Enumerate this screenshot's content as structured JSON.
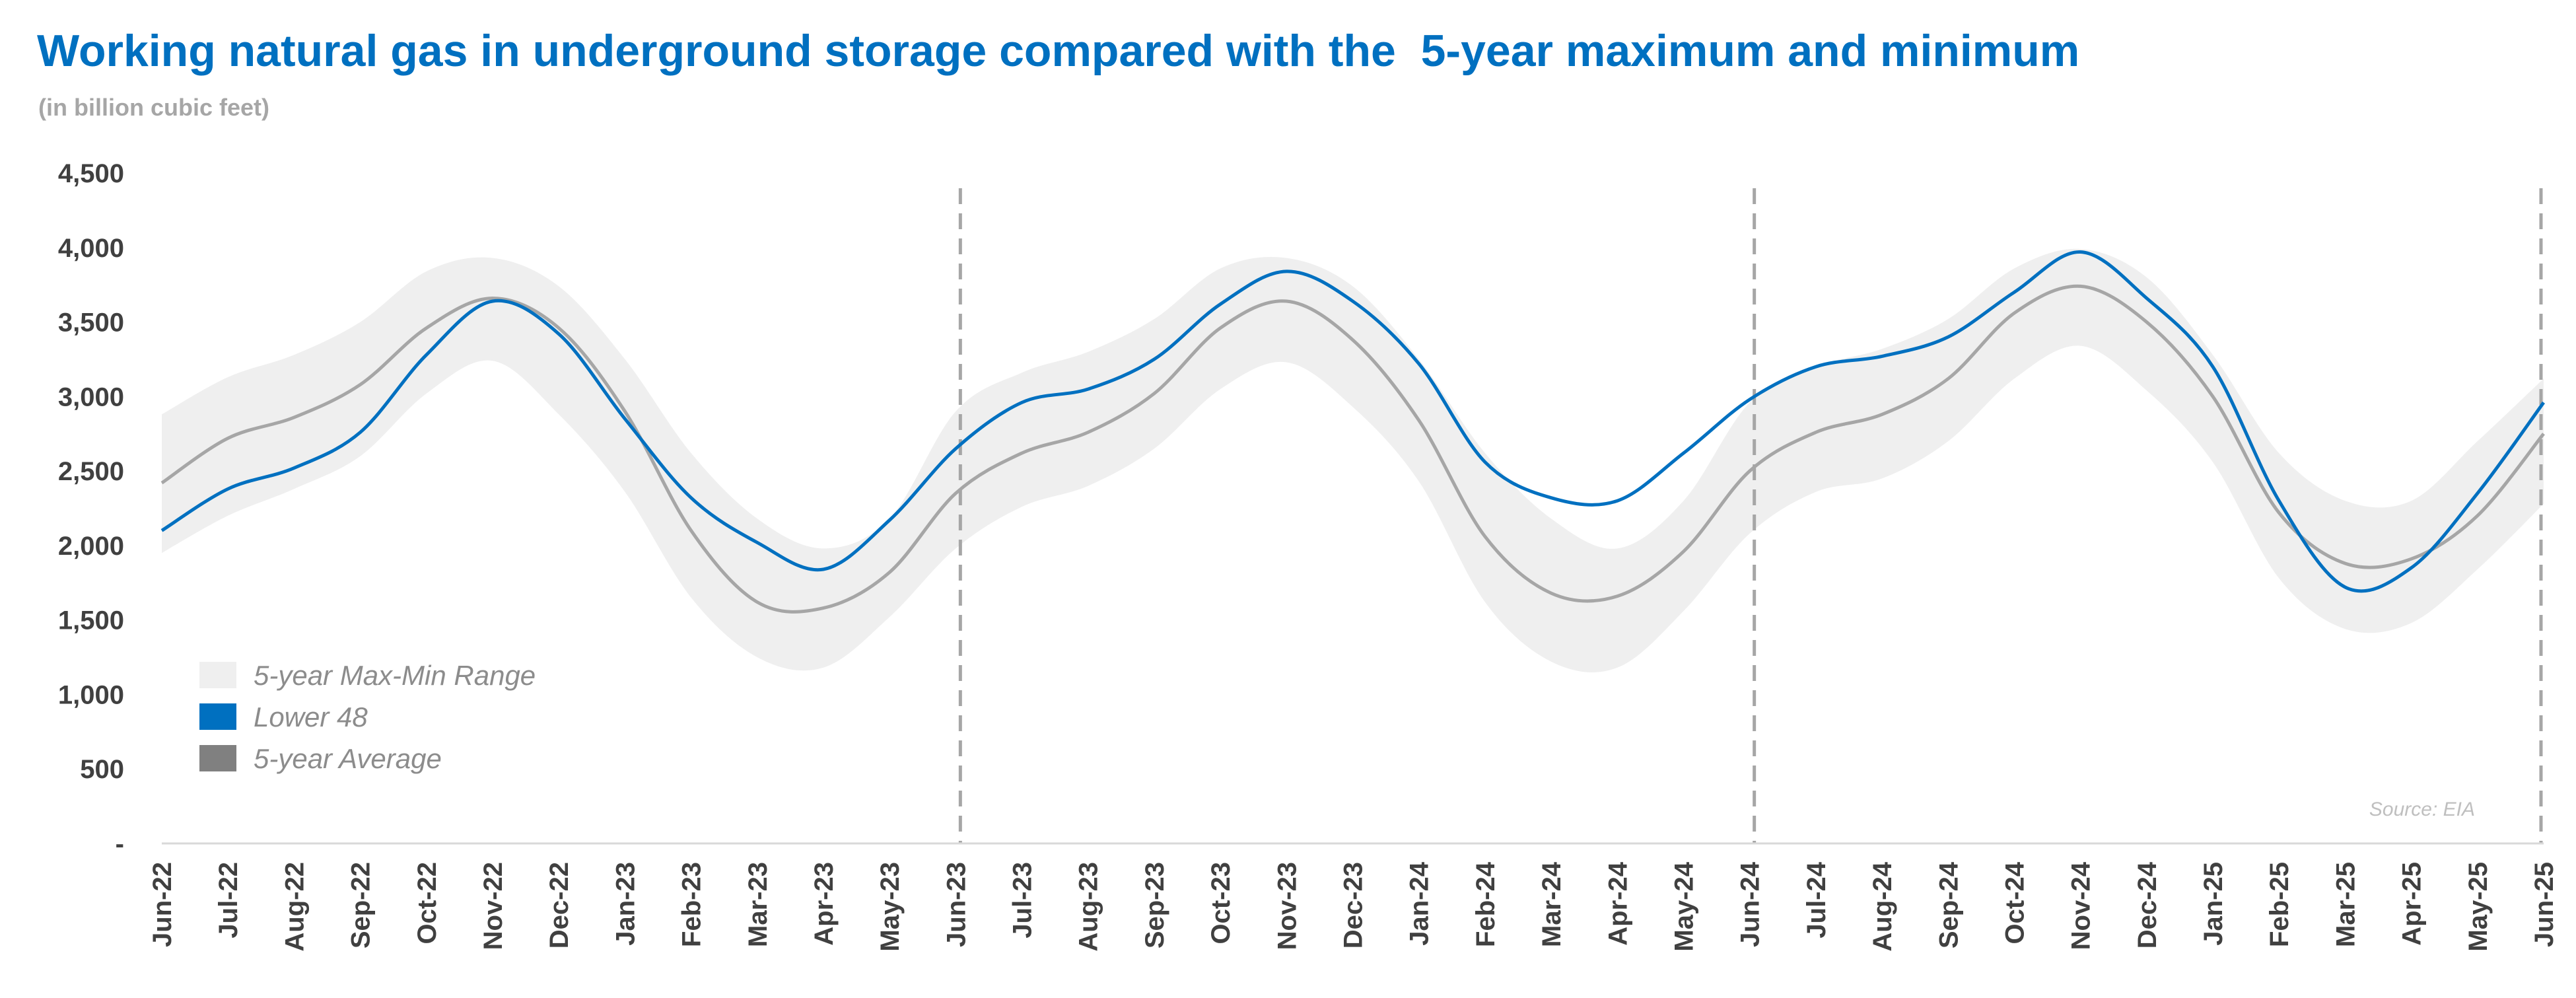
{
  "title": "Working natural gas in underground storage compared with the  5-year maximum and minimum",
  "subtitle": "(in billion cubic feet)",
  "source": "Source: EIA",
  "colors": {
    "title": "#0070c0",
    "lower48": "#0070c0",
    "average": "#a6a6a6",
    "range": "#efefef",
    "axis_text": "#404040",
    "dashed_line": "#a6a6a6"
  },
  "chart_data": {
    "type": "area",
    "ylim": [
      0,
      4500
    ],
    "y_ticks": [
      {
        "value": 0,
        "label": "-"
      },
      {
        "value": 500,
        "label": "500"
      },
      {
        "value": 1000,
        "label": "1,000"
      },
      {
        "value": 1500,
        "label": "1,500"
      },
      {
        "value": 2000,
        "label": "2,000"
      },
      {
        "value": 2500,
        "label": "2,500"
      },
      {
        "value": 3000,
        "label": "3,000"
      },
      {
        "value": 3500,
        "label": "3,500"
      },
      {
        "value": 4000,
        "label": "4,000"
      },
      {
        "value": 4500,
        "label": "4,500"
      }
    ],
    "x_labels": [
      "Jun-22",
      "Jul-22",
      "Aug-22",
      "Sep-22",
      "Oct-22",
      "Nov-22",
      "Dec-22",
      "Jan-23",
      "Feb-23",
      "Mar-23",
      "Apr-23",
      "May-23",
      "Jun-23",
      "Jul-23",
      "Aug-23",
      "Sep-23",
      "Oct-23",
      "Nov-23",
      "Dec-23",
      "Jan-24",
      "Feb-24",
      "Mar-24",
      "Apr-24",
      "May-24",
      "Jun-24",
      "Jul-24",
      "Aug-24",
      "Sep-24",
      "Oct-24",
      "Nov-24",
      "Dec-24",
      "Jan-25",
      "Feb-25",
      "Mar-25",
      "Apr-25",
      "May-25",
      "Jun-25"
    ],
    "x_range": [
      "Jun-22",
      "Jun-25"
    ],
    "year_dividers": [
      "Jun-23",
      "Jun-24"
    ],
    "grid": false,
    "legend_position": "bottom-left",
    "legend": [
      {
        "key": "range",
        "label": "5-year Max-Min Range"
      },
      {
        "key": "lower48",
        "label": "Lower 48"
      },
      {
        "key": "average",
        "label": "5-year Average"
      }
    ],
    "series": [
      {
        "name": "Lower 48",
        "key": "lower48",
        "points": [
          [
            "Jun-22",
            2100
          ],
          [
            "Jul-22",
            2380
          ],
          [
            "Aug-22",
            2520
          ],
          [
            "Sep-22",
            2760
          ],
          [
            "Oct-22",
            3280
          ],
          [
            "Nov-22",
            3640
          ],
          [
            "Dec-22",
            3420
          ],
          [
            "Jan-23",
            2850
          ],
          [
            "Feb-23",
            2320
          ],
          [
            "Mar-23",
            2020
          ],
          [
            "Apr-23",
            1840
          ],
          [
            "May-23",
            2170
          ],
          [
            "Jun-23",
            2650
          ],
          [
            "Jul-23",
            2960
          ],
          [
            "Aug-23",
            3050
          ],
          [
            "Sep-23",
            3250
          ],
          [
            "Oct-23",
            3620
          ],
          [
            "Nov-23",
            3840
          ],
          [
            "Dec-23",
            3640
          ],
          [
            "Jan-24",
            3220
          ],
          [
            "Feb-24",
            2560
          ],
          [
            "Mar-24",
            2320
          ],
          [
            "Apr-24",
            2300
          ],
          [
            "May-24",
            2620
          ],
          [
            "Jun-24",
            2980
          ],
          [
            "Jul-24",
            3200
          ],
          [
            "Aug-24",
            3270
          ],
          [
            "Sep-24",
            3400
          ],
          [
            "Oct-24",
            3700
          ],
          [
            "Nov-24",
            3970
          ],
          [
            "Dec-24",
            3660
          ],
          [
            "Jan-25",
            3200
          ],
          [
            "Feb-25",
            2300
          ],
          [
            "Mar-25",
            1720
          ],
          [
            "Apr-25",
            1850
          ],
          [
            "May-25",
            2350
          ],
          [
            "Jun-25",
            2960
          ]
        ]
      },
      {
        "name": "5-year Average",
        "key": "average",
        "points": [
          [
            "Jun-22",
            2420
          ],
          [
            "Jul-22",
            2720
          ],
          [
            "Aug-22",
            2860
          ],
          [
            "Sep-22",
            3080
          ],
          [
            "Oct-22",
            3460
          ],
          [
            "Nov-22",
            3660
          ],
          [
            "Dec-22",
            3460
          ],
          [
            "Jan-23",
            2900
          ],
          [
            "Feb-23",
            2100
          ],
          [
            "Mar-23",
            1620
          ],
          [
            "Apr-23",
            1580
          ],
          [
            "May-23",
            1820
          ],
          [
            "Jun-23",
            2350
          ],
          [
            "Jul-23",
            2620
          ],
          [
            "Aug-23",
            2760
          ],
          [
            "Sep-23",
            3020
          ],
          [
            "Oct-23",
            3460
          ],
          [
            "Nov-23",
            3640
          ],
          [
            "Dec-23",
            3380
          ],
          [
            "Jan-24",
            2840
          ],
          [
            "Feb-24",
            2060
          ],
          [
            "Mar-24",
            1680
          ],
          [
            "Apr-24",
            1660
          ],
          [
            "May-24",
            1960
          ],
          [
            "Jun-24",
            2500
          ],
          [
            "Jul-24",
            2760
          ],
          [
            "Aug-24",
            2880
          ],
          [
            "Sep-24",
            3120
          ],
          [
            "Oct-24",
            3560
          ],
          [
            "Nov-24",
            3740
          ],
          [
            "Dec-24",
            3500
          ],
          [
            "Jan-25",
            3000
          ],
          [
            "Feb-25",
            2220
          ],
          [
            "Mar-25",
            1880
          ],
          [
            "Apr-25",
            1910
          ],
          [
            "May-25",
            2200
          ],
          [
            "Jun-25",
            2750
          ]
        ]
      },
      {
        "name": "5-year Max-Min Range",
        "key": "range",
        "points": [
          [
            "Jun-22",
            1950,
            2880
          ],
          [
            "Jul-22",
            2200,
            3130
          ],
          [
            "Aug-22",
            2380,
            3280
          ],
          [
            "Sep-22",
            2600,
            3500
          ],
          [
            "Oct-22",
            3020,
            3840
          ],
          [
            "Nov-22",
            3240,
            3930
          ],
          [
            "Dec-22",
            2880,
            3740
          ],
          [
            "Jan-23",
            2360,
            3250
          ],
          [
            "Feb-23",
            1650,
            2620
          ],
          [
            "Mar-23",
            1250,
            2180
          ],
          [
            "Apr-23",
            1180,
            1980
          ],
          [
            "May-23",
            1520,
            2180
          ],
          [
            "Jun-23",
            1980,
            2900
          ],
          [
            "Jul-23",
            2260,
            3160
          ],
          [
            "Aug-23",
            2400,
            3300
          ],
          [
            "Sep-23",
            2650,
            3520
          ],
          [
            "Oct-23",
            3050,
            3860
          ],
          [
            "Nov-23",
            3230,
            3930
          ],
          [
            "Dec-23",
            2930,
            3740
          ],
          [
            "Jan-24",
            2430,
            3250
          ],
          [
            "Feb-24",
            1620,
            2620
          ],
          [
            "Mar-24",
            1220,
            2180
          ],
          [
            "Apr-24",
            1180,
            1980
          ],
          [
            "May-24",
            1560,
            2300
          ],
          [
            "Jun-24",
            2080,
            2960
          ],
          [
            "Jul-24",
            2360,
            3200
          ],
          [
            "Aug-24",
            2450,
            3320
          ],
          [
            "Sep-24",
            2700,
            3520
          ],
          [
            "Oct-24",
            3120,
            3860
          ],
          [
            "Nov-24",
            3340,
            3990
          ],
          [
            "Dec-24",
            3040,
            3800
          ],
          [
            "Jan-25",
            2560,
            3280
          ],
          [
            "Feb-25",
            1780,
            2620
          ],
          [
            "Mar-25",
            1440,
            2300
          ],
          [
            "Apr-25",
            1480,
            2300
          ],
          [
            "May-25",
            1840,
            2700
          ],
          [
            "Jun-25",
            2280,
            3120
          ]
        ]
      }
    ]
  }
}
